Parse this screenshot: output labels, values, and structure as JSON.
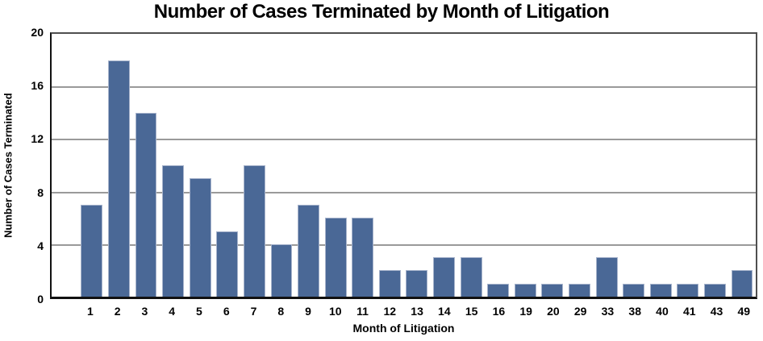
{
  "chart_data": {
    "type": "bar",
    "title": "Number of Cases Terminated by Month of Litigation",
    "xlabel": "Month of Litigation",
    "ylabel": "Number of Cases Terminated",
    "categories": [
      "1",
      "2",
      "3",
      "4",
      "5",
      "6",
      "7",
      "8",
      "9",
      "10",
      "11",
      "12",
      "13",
      "14",
      "15",
      "16",
      "19",
      "20",
      "29",
      "33",
      "38",
      "40",
      "41",
      "43",
      "49"
    ],
    "values": [
      7,
      18,
      14,
      10,
      9,
      5,
      10,
      4,
      7,
      6,
      6,
      2,
      2,
      3,
      3,
      1,
      1,
      1,
      1,
      3,
      1,
      1,
      1,
      1,
      2
    ],
    "ylim": [
      0,
      20
    ],
    "yticks": [
      0,
      4,
      8,
      12,
      16,
      20
    ],
    "grid": true,
    "legend": "none",
    "bar_color": "#4a6896",
    "bar_border_color": "#a8b4cc",
    "gridline_color": "#9a9a9a"
  }
}
